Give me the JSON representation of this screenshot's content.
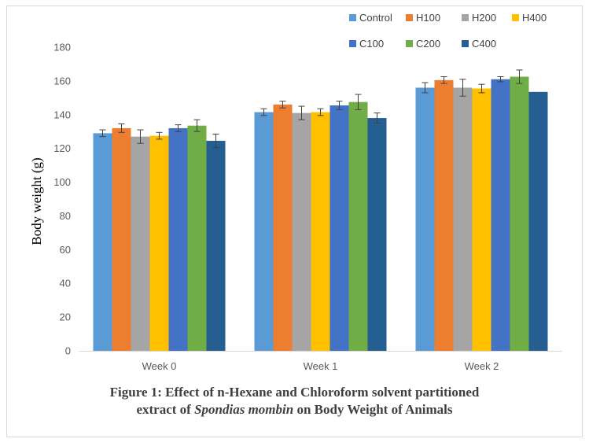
{
  "chart_data": {
    "type": "bar",
    "title": "",
    "xlabel": "",
    "ylabel": "Body weight (g)",
    "categories": [
      "Week 0",
      "Week 1",
      "Week 2"
    ],
    "ylim": [
      0,
      180
    ],
    "yticks": [
      0,
      20,
      40,
      60,
      80,
      100,
      120,
      140,
      160,
      180
    ],
    "grid": false,
    "legend_position": "top-right",
    "series": [
      {
        "name": "Control",
        "color": "#5b9bd5",
        "values": [
          129,
          141.5,
          156
        ],
        "errors": [
          2,
          2,
          3
        ]
      },
      {
        "name": "H100",
        "color": "#ed7d31",
        "values": [
          132,
          146,
          160.5
        ],
        "errors": [
          2.5,
          2,
          2
        ]
      },
      {
        "name": "H200",
        "color": "#a5a5a5",
        "values": [
          127,
          141,
          156
        ],
        "errors": [
          4,
          4,
          5
        ]
      },
      {
        "name": "H400",
        "color": "#ffc000",
        "values": [
          127.5,
          141.5,
          155.5
        ],
        "errors": [
          2,
          2,
          2.5
        ]
      },
      {
        "name": "C100",
        "color": "#4472c4",
        "values": [
          132,
          145.5,
          161
        ],
        "errors": [
          2,
          2.5,
          1.5
        ]
      },
      {
        "name": "C200",
        "color": "#70ad47",
        "values": [
          133.5,
          147.5,
          162.5
        ],
        "errors": [
          3.5,
          4.5,
          4
        ]
      },
      {
        "name": "C400",
        "color": "#255e91",
        "values": [
          124.5,
          138,
          153.5
        ],
        "errors": [
          4,
          3,
          0
        ]
      }
    ]
  },
  "caption": {
    "line1": "Figure 1: Effect of n-Hexane and Chloroform solvent partitioned",
    "line2_before": "extract of ",
    "line2_italic": "Spondias mombin",
    "line2_after": " on Body Weight of Animals"
  }
}
